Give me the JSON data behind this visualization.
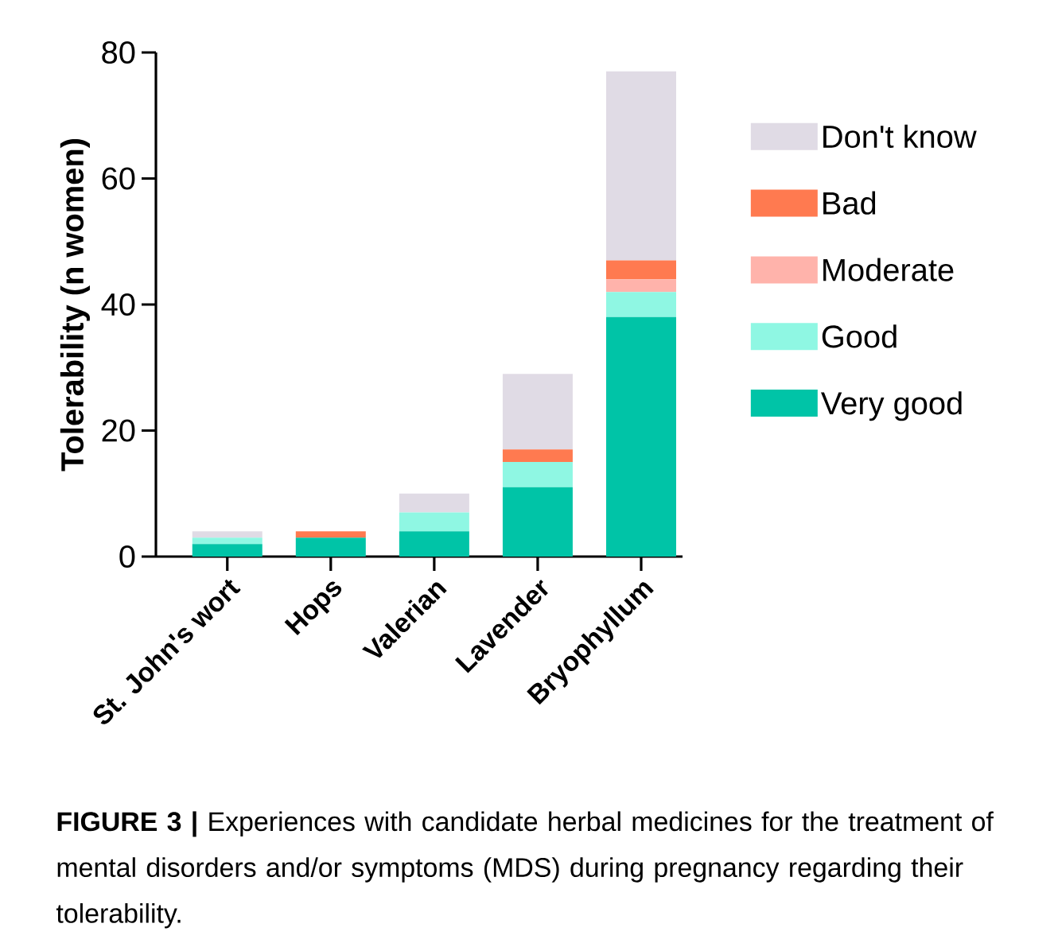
{
  "chart_data": {
    "type": "bar",
    "stacked": true,
    "ylabel": "Tolerability (n women)",
    "categories": [
      "St. John's wort",
      "Hops",
      "Valerian",
      "Lavender",
      "Bryophyllum"
    ],
    "series": [
      {
        "name": "Very good",
        "color": "#00c4a7",
        "values": [
          2,
          3,
          4,
          11,
          38
        ]
      },
      {
        "name": "Good",
        "color": "#8ff7e3",
        "values": [
          1,
          0,
          3,
          4,
          4
        ]
      },
      {
        "name": "Moderate",
        "color": "#ffb3ab",
        "values": [
          0,
          0,
          0,
          0,
          2
        ]
      },
      {
        "name": "Bad",
        "color": "#ff7a50",
        "values": [
          0,
          1,
          0,
          2,
          3
        ]
      },
      {
        "name": "Don't know",
        "color": "#e0dbe5",
        "values": [
          1,
          0,
          3,
          12,
          30
        ]
      }
    ],
    "ylim": [
      0,
      80
    ],
    "yticks": [
      0,
      20,
      40,
      60,
      80
    ],
    "legend": "right",
    "annotations": [
      "**FIGURE 3 |** Experiences with candidate herbal medicines for the treatment of mental disorders and/or symptoms (MDS) during pregnancy regarding their tolerability."
    ]
  }
}
